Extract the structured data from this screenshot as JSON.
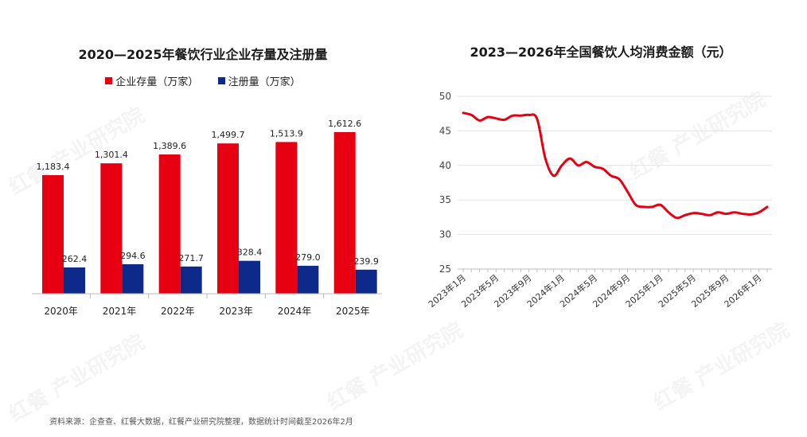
{
  "watermark": "红餐 产业研究院",
  "left": {
    "title": "2020—2025年餐饮行业企业存量及注册量",
    "chart_data": {
      "type": "bar",
      "categories": [
        "2020年",
        "2021年",
        "2022年",
        "2023年",
        "2024年",
        "2025年"
      ],
      "series": [
        {
          "name": "企业存量（万家）",
          "color": "#e60012",
          "values": [
            1183.4,
            1301.4,
            1389.6,
            1499.7,
            1513.9,
            1612.6
          ],
          "labels": [
            "1,183.4",
            "1,301.4",
            "1,389.6",
            "1,499.7",
            "1,513.9",
            "1,612.6"
          ]
        },
        {
          "name": "注册量（万家）",
          "color": "#0d2a8a",
          "values": [
            262.4,
            294.6,
            271.7,
            328.4,
            279.0,
            239.9
          ],
          "labels": [
            "262.4",
            "294.6",
            "271.7",
            "328.4",
            "279.0",
            "239.9"
          ]
        }
      ],
      "grid": false
    }
  },
  "right": {
    "title": "2023—2026年全国餐饮人均消费金额（元）",
    "chart_data": {
      "type": "line",
      "ylim": [
        25,
        50
      ],
      "yticks": [
        25,
        30,
        35,
        40,
        45,
        50
      ],
      "grid": true,
      "color": "#e60012",
      "xticks": [
        "2023年1月",
        "2023年5月",
        "2023年9月",
        "2024年1月",
        "2024年5月",
        "2024年9月",
        "2025年1月",
        "2025年5月",
        "2025年9月",
        "2026年1月"
      ],
      "x": [
        "2023-01",
        "2023-02",
        "2023-03",
        "2023-04",
        "2023-05",
        "2023-06",
        "2023-07",
        "2023-08",
        "2023-09",
        "2023-10",
        "2023-11",
        "2023-12",
        "2024-01",
        "2024-02",
        "2024-03",
        "2024-04",
        "2024-05",
        "2024-06",
        "2024-07",
        "2024-08",
        "2024-09",
        "2024-10",
        "2024-11",
        "2024-12",
        "2025-01",
        "2025-02",
        "2025-03",
        "2025-04",
        "2025-05",
        "2025-06",
        "2025-07",
        "2025-08",
        "2025-09",
        "2025-10",
        "2025-11",
        "2025-12",
        "2026-01",
        "2026-02"
      ],
      "values": [
        47.6,
        47.3,
        46.5,
        47.0,
        46.8,
        46.6,
        47.2,
        47.2,
        47.3,
        46.7,
        41.0,
        38.5,
        40.0,
        41.0,
        40.0,
        40.5,
        39.8,
        39.5,
        38.5,
        38.0,
        36.2,
        34.3,
        34.0,
        34.0,
        34.3,
        33.2,
        32.4,
        32.8,
        33.1,
        33.0,
        32.8,
        33.2,
        33.0,
        33.2,
        33.0,
        32.9,
        33.2,
        34.0
      ]
    }
  },
  "source": "资料来源：企查查、红餐大数据，红餐产业研究院整理，数据统计时间截至2026年2月"
}
